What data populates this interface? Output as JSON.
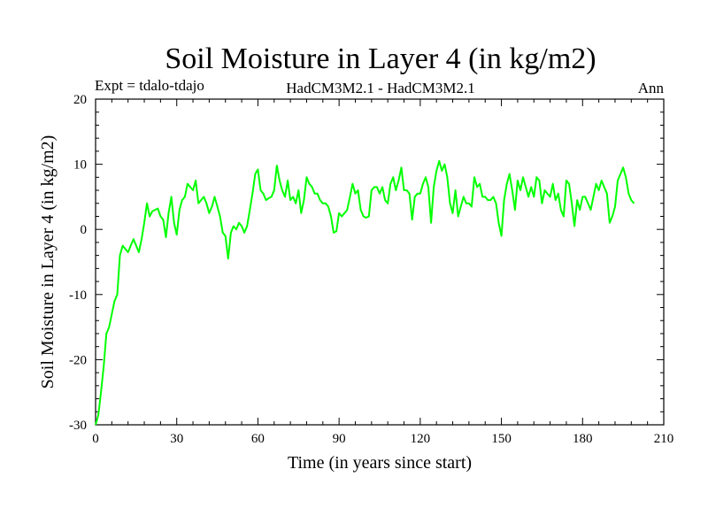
{
  "chart_data": {
    "type": "line",
    "title": "Soil Moisture in Layer 4 (in kg/m2)",
    "subtitle_left": "Expt = tdalo-tdajo",
    "subtitle_center": "HadCM3M2.1 - HadCM3M2.1",
    "subtitle_right": "Ann",
    "xlabel": "Time (in years since start)",
    "ylabel": "Soil Moisture in Layer 4 (in kg/m2)",
    "xlim": [
      0,
      210
    ],
    "ylim": [
      -30,
      20
    ],
    "xticks": [
      0,
      30,
      60,
      90,
      120,
      150,
      180,
      210
    ],
    "xtick_labels": [
      "0",
      "30",
      "60",
      "90",
      "120",
      "150",
      "180",
      "210"
    ],
    "yticks": [
      -30,
      -20,
      -10,
      0,
      10,
      20
    ],
    "ytick_labels": [
      "-30",
      "-20",
      "-10",
      "0",
      "10",
      "20"
    ],
    "line_color": "#00ff00",
    "series": [
      {
        "name": "Soil Moisture Layer 4",
        "x": [
          0,
          1,
          2,
          3,
          4,
          5,
          6,
          7,
          8,
          9,
          10,
          11,
          12,
          13,
          14,
          15,
          16,
          17,
          18,
          19,
          20,
          21,
          22,
          23,
          24,
          25,
          26,
          27,
          28,
          29,
          30,
          31,
          32,
          33,
          34,
          35,
          36,
          37,
          38,
          39,
          40,
          41,
          42,
          43,
          44,
          45,
          46,
          47,
          48,
          49,
          50,
          51,
          52,
          53,
          54,
          55,
          56,
          57,
          58,
          59,
          60,
          61,
          62,
          63,
          64,
          65,
          66,
          67,
          68,
          69,
          70,
          71,
          72,
          73,
          74,
          75,
          76,
          77,
          78,
          79,
          80,
          81,
          82,
          83,
          84,
          85,
          86,
          87,
          88,
          89,
          90,
          91,
          92,
          93,
          94,
          95,
          96,
          97,
          98,
          99,
          100,
          101,
          102,
          103,
          104,
          105,
          106,
          107,
          108,
          109,
          110,
          111,
          112,
          113,
          114,
          115,
          116,
          117,
          118,
          119,
          120,
          121,
          122,
          123,
          124,
          125,
          126,
          127,
          128,
          129,
          130,
          131,
          132,
          133,
          134,
          135,
          136,
          137,
          138,
          139,
          140,
          141,
          142,
          143,
          144,
          145,
          146,
          147,
          148,
          149,
          150,
          151,
          152,
          153,
          154,
          155,
          156,
          157,
          158,
          159,
          160,
          161,
          162,
          163,
          164,
          165,
          166,
          167,
          168,
          169,
          170,
          171,
          172,
          173,
          174,
          175,
          176,
          177,
          178,
          179,
          180,
          181,
          182,
          183,
          184,
          185,
          186,
          187,
          188,
          189,
          190,
          191,
          192,
          193,
          194,
          195,
          196,
          197,
          198,
          199
        ],
        "values": [
          -30.0,
          -28.5,
          -25.0,
          -21.0,
          -16.0,
          -15.0,
          -13.0,
          -11.0,
          -10.0,
          -4.0,
          -2.5,
          -3.0,
          -3.5,
          -2.5,
          -1.5,
          -2.5,
          -3.5,
          -1.5,
          1.0,
          4.0,
          2.0,
          2.8,
          3.0,
          3.2,
          2.0,
          1.5,
          -1.2,
          2.5,
          5.0,
          1.0,
          -0.8,
          3.0,
          4.5,
          5.0,
          7.0,
          6.5,
          6.0,
          7.5,
          4.0,
          4.5,
          5.0,
          4.0,
          2.5,
          3.5,
          5.0,
          3.5,
          2.0,
          -0.5,
          -1.0,
          -4.5,
          -0.5,
          0.5,
          0.0,
          1.0,
          0.5,
          -0.5,
          0.5,
          3.0,
          5.5,
          8.5,
          9.2,
          6.0,
          5.5,
          4.5,
          4.8,
          5.0,
          6.0,
          9.8,
          7.5,
          6.0,
          5.0,
          7.5,
          4.5,
          5.0,
          4.0,
          6.0,
          2.5,
          4.5,
          8.0,
          7.0,
          6.5,
          5.5,
          5.5,
          4.5,
          4.0,
          4.0,
          3.5,
          2.0,
          -0.5,
          -0.3,
          2.5,
          2.0,
          2.5,
          3.0,
          5.0,
          7.0,
          5.5,
          6.0,
          3.0,
          2.0,
          1.8,
          2.0,
          6.0,
          6.5,
          6.5,
          5.5,
          6.5,
          4.5,
          4.0,
          7.0,
          8.0,
          6.0,
          7.5,
          9.5,
          6.0,
          6.0,
          5.5,
          1.5,
          5.0,
          5.5,
          5.5,
          7.0,
          8.0,
          6.5,
          1.0,
          6.5,
          9.0,
          10.5,
          9.0,
          10.0,
          8.0,
          4.0,
          2.5,
          6.0,
          2.0,
          3.5,
          5.0,
          4.0,
          4.0,
          3.5,
          8.0,
          6.5,
          7.0,
          5.0,
          5.0,
          4.5,
          4.5,
          5.0,
          4.0,
          1.0,
          -1.0,
          4.5,
          7.0,
          8.5,
          6.0,
          3.0,
          7.5,
          6.0,
          8.0,
          6.5,
          5.0,
          6.5,
          5.0,
          8.0,
          7.5,
          4.0,
          6.0,
          5.5,
          5.0,
          7.0,
          4.5,
          5.5,
          3.0,
          2.0,
          7.5,
          7.0,
          4.0,
          0.5,
          4.5,
          3.0,
          5.0,
          5.0,
          4.0,
          3.0,
          5.0,
          7.0,
          6.0,
          7.5,
          6.5,
          5.5,
          1.0,
          2.0,
          3.5,
          7.5,
          8.5,
          9.5,
          8.0,
          5.5,
          4.5,
          4.0
        ]
      }
    ]
  }
}
